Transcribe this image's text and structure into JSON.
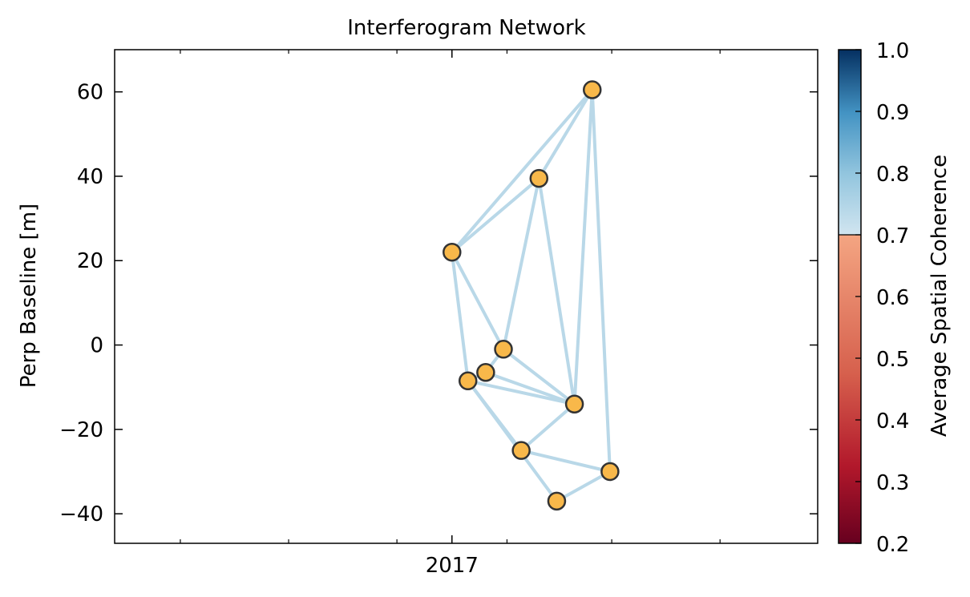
{
  "chart_data": {
    "type": "network",
    "title": "Interferogram Network",
    "ylabel": "Perp Baseline [m]",
    "xlabel": "",
    "x_tick_labels": [
      "2017"
    ],
    "y_ticks": [
      60,
      40,
      20,
      0,
      -20,
      -40
    ],
    "y_tick_labels": [
      "60",
      "40",
      "20",
      "0",
      "−20",
      "−40"
    ],
    "ylim": [
      -47,
      70
    ],
    "xlim": [
      "2016-06-25",
      "2017-07-26"
    ],
    "x_tick_dates": [
      "2017-01-01"
    ],
    "x_minor_tick_dates": [
      "2016-08-01",
      "2016-10-01",
      "2016-12-01",
      "2017-02-01",
      "2017-04-01",
      "2017-06-01"
    ],
    "nodes": [
      {
        "date": "2017-01-01",
        "bperp": 22
      },
      {
        "date": "2017-01-10",
        "bperp": -8.5
      },
      {
        "date": "2017-01-20",
        "bperp": -6.5
      },
      {
        "date": "2017-01-30",
        "bperp": -1
      },
      {
        "date": "2017-02-09",
        "bperp": -25
      },
      {
        "date": "2017-02-19",
        "bperp": 39.5
      },
      {
        "date": "2017-03-01",
        "bperp": -37
      },
      {
        "date": "2017-03-11",
        "bperp": -14
      },
      {
        "date": "2017-03-21",
        "bperp": 60.5
      },
      {
        "date": "2017-03-31",
        "bperp": -30
      }
    ],
    "edges": [
      [
        0,
        5
      ],
      [
        0,
        8
      ],
      [
        0,
        1
      ],
      [
        0,
        3
      ],
      [
        5,
        8
      ],
      [
        5,
        3
      ],
      [
        5,
        7
      ],
      [
        8,
        7
      ],
      [
        8,
        9
      ],
      [
        3,
        2
      ],
      [
        3,
        7
      ],
      [
        2,
        1
      ],
      [
        2,
        7
      ],
      [
        1,
        7
      ],
      [
        1,
        4
      ],
      [
        1,
        6
      ],
      [
        4,
        7
      ],
      [
        4,
        9
      ],
      [
        6,
        9
      ]
    ],
    "edge_coherence": 0.76,
    "colorbar": {
      "label": "Average Spatial Coherence",
      "range": [
        0.2,
        1.0
      ],
      "ticks": [
        1.0,
        0.9,
        0.8,
        0.7,
        0.6,
        0.5,
        0.4,
        0.3,
        0.2
      ],
      "tick_labels": [
        "1.0",
        "0.9",
        "0.8",
        "0.7",
        "0.6",
        "0.5",
        "0.4",
        "0.3",
        "0.2"
      ],
      "threshold": 0.7,
      "colormap": "RdBu"
    },
    "colors": {
      "edge": "#b9d8e8",
      "node_fill": "#f8b84a",
      "node_stroke": "#333333"
    },
    "grid": false,
    "legend": "none"
  }
}
